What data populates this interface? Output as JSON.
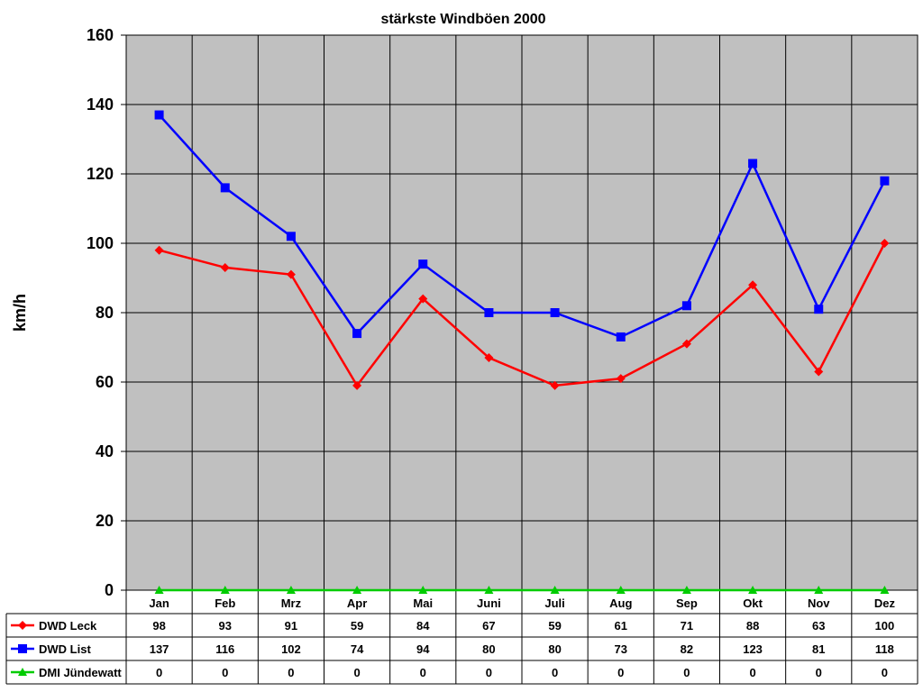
{
  "chart_data": {
    "type": "line",
    "title": "stärkste Windböen 2000",
    "ylabel": "km/h",
    "xlabel": "",
    "ylim": [
      0,
      160
    ],
    "yticks": [
      "0",
      "20",
      "40",
      "60",
      "80",
      "100",
      "120",
      "140",
      "160"
    ],
    "ytick_values": [
      0,
      20,
      40,
      60,
      80,
      100,
      120,
      140,
      160
    ],
    "grid": true,
    "legend": "data-table",
    "plot_background": "#c0c0c0",
    "categories": [
      "Jan",
      "Feb",
      "Mrz",
      "Apr",
      "Mai",
      "Juni",
      "Juli",
      "Aug",
      "Sep",
      "Okt",
      "Nov",
      "Dez"
    ],
    "series": [
      {
        "name": "DWD Leck",
        "color": "#ff0000",
        "marker": "diamond",
        "values": [
          98,
          93,
          91,
          59,
          84,
          67,
          59,
          61,
          71,
          88,
          63,
          100
        ],
        "labels": [
          "98",
          "93",
          "91",
          "59",
          "84",
          "67",
          "59",
          "61",
          "71",
          "88",
          "63",
          "100"
        ]
      },
      {
        "name": "DWD List",
        "color": "#0000ff",
        "marker": "square",
        "values": [
          137,
          116,
          102,
          74,
          94,
          80,
          80,
          73,
          82,
          123,
          81,
          118
        ],
        "labels": [
          "137",
          "116",
          "102",
          "74",
          "94",
          "80",
          "80",
          "73",
          "82",
          "123",
          "81",
          "118"
        ]
      },
      {
        "name": "DMI Jündewatt",
        "color": "#00cc00",
        "marker": "triangle",
        "values": [
          0,
          0,
          0,
          0,
          0,
          0,
          0,
          0,
          0,
          0,
          0,
          0
        ],
        "labels": [
          "0",
          "0",
          "0",
          "0",
          "0",
          "0",
          "0",
          "0",
          "0",
          "0",
          "0",
          "0"
        ]
      }
    ]
  }
}
